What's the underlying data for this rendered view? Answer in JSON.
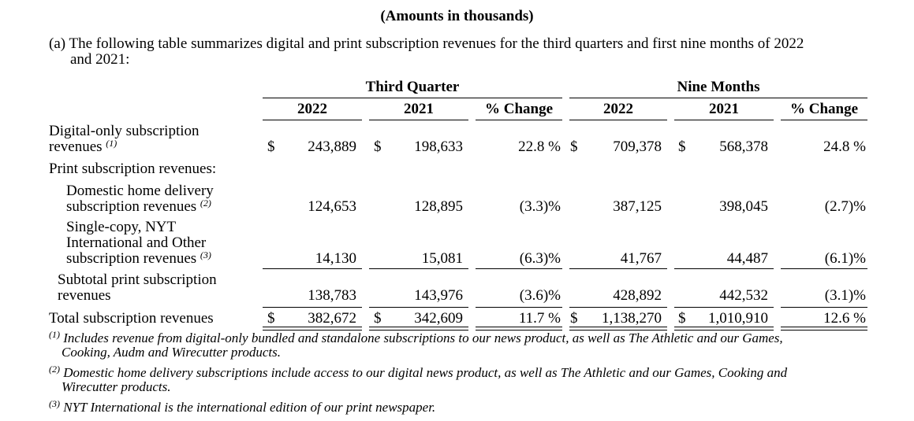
{
  "header": {
    "amounts_note": "(Amounts in thousands)",
    "intro_line1": "(a) The following table summarizes digital and print subscription revenues for the third quarters and first nine months of 2022",
    "intro_line2": "and 2021:"
  },
  "table": {
    "groups": [
      "Third Quarter",
      "Nine Months"
    ],
    "columns": [
      "2022",
      "2021",
      "% Change",
      "2022",
      "2021",
      "% Change"
    ],
    "currency": "$",
    "rows": [
      {
        "label_line1": "Digital-only subscription",
        "label_line2": "revenues",
        "footnote": "(1)",
        "values": [
          "243,889",
          "198,633",
          "22.8 %",
          "709,378",
          "568,378",
          "24.8 %"
        ]
      },
      {
        "label": "Print subscription revenues:"
      },
      {
        "label_line1": "Domestic home delivery",
        "label_line2": "subscription revenues",
        "footnote": "(2)",
        "values": [
          "124,653",
          "128,895",
          "(3.3)%",
          "387,125",
          "398,045",
          "(2.7)%"
        ]
      },
      {
        "label_line1": "Single-copy, NYT",
        "label_line2": "International and Other",
        "label_line3": "subscription revenues",
        "footnote": "(3)",
        "values": [
          "14,130",
          "15,081",
          "(6.3)%",
          "41,767",
          "44,487",
          "(6.1)%"
        ]
      },
      {
        "label_line1": "Subtotal print subscription",
        "label_line2": "revenues",
        "values": [
          "138,783",
          "143,976",
          "(3.6)%",
          "428,892",
          "442,532",
          "(3.1)%"
        ]
      },
      {
        "label": "Total subscription revenues",
        "values": [
          "382,672",
          "342,609",
          "11.7 %",
          "1,138,270",
          "1,010,910",
          "12.6 %"
        ]
      }
    ]
  },
  "footnotes": [
    {
      "marker": "(1)",
      "line1": "Includes revenue from digital-only bundled and standalone subscriptions to our news product, as well as The Athletic and our Games,",
      "line2": "Cooking, Audm and Wirecutter products."
    },
    {
      "marker": "(2)",
      "line1": "Domestic home delivery subscriptions include access to our digital news product, as well as The Athletic and our Games, Cooking and",
      "line2": "Wirecutter products."
    },
    {
      "marker": "(3)",
      "line1": "NYT International is the international edition of our print newspaper."
    }
  ]
}
